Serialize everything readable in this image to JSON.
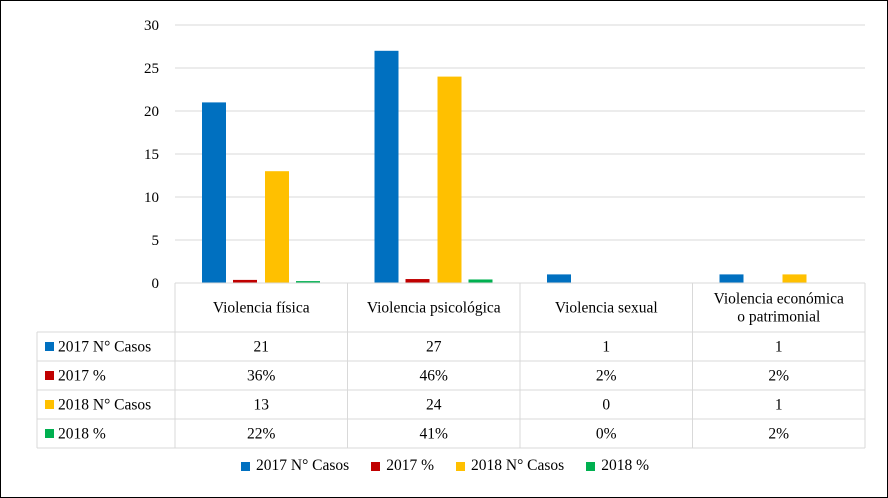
{
  "chart_data": {
    "type": "bar",
    "categories": [
      "Violencia física",
      "Violencia psicológica",
      "Violencia sexual",
      "Violencia económica o patrimonial"
    ],
    "category_lines": [
      [
        "Violencia física"
      ],
      [
        "Violencia psicológica"
      ],
      [
        "Violencia sexual"
      ],
      [
        "Violencia económica",
        "o patrimonial"
      ]
    ],
    "ylim": [
      0,
      30
    ],
    "yticks": [
      0,
      5,
      10,
      15,
      20,
      25,
      30
    ],
    "grid": true,
    "legend_position": "bottom",
    "series": [
      {
        "name": "2017 N° Casos",
        "color": "#0070C0",
        "values": [
          21,
          27,
          1,
          1
        ],
        "table": [
          "21",
          "27",
          "1",
          "1"
        ]
      },
      {
        "name": "2017 %",
        "color": "#C00000",
        "values": [
          0.36,
          0.46,
          0.02,
          0.02
        ],
        "table": [
          "36%",
          "46%",
          "2%",
          "2%"
        ]
      },
      {
        "name": "2018 N° Casos",
        "color": "#FFC000",
        "values": [
          13,
          24,
          0,
          1
        ],
        "table": [
          "13",
          "24",
          "0",
          "1"
        ]
      },
      {
        "name": "2018 %",
        "color": "#00B050",
        "values": [
          0.22,
          0.41,
          0,
          0.02
        ],
        "table": [
          "22%",
          "41%",
          "0%",
          "2%"
        ]
      }
    ]
  }
}
